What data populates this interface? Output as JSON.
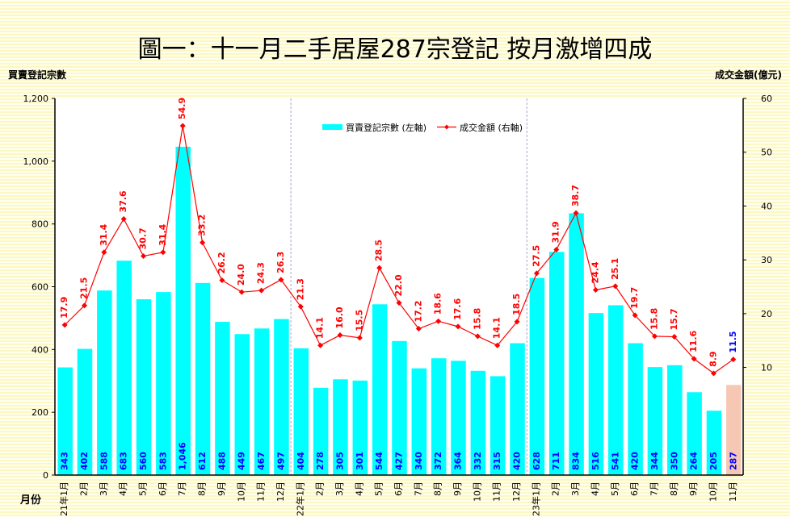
{
  "chart_data": {
    "type": "bar+line",
    "title": "圖一：十一月二手居屋287宗登記 按月激增四成",
    "ylabel_left": "買賣登記宗數",
    "ylabel_right": "成交金額(億元)",
    "xlabel": "月份",
    "categories": [
      "21年1月",
      "2月",
      "3月",
      "4月",
      "5月",
      "6月",
      "7月",
      "8月",
      "9月",
      "10月",
      "11月",
      "12月",
      "22年1月",
      "2月",
      "3月",
      "4月",
      "5月",
      "6月",
      "7月",
      "8月",
      "9月",
      "10月",
      "11月",
      "12月",
      "23年1月",
      "2月",
      "3月",
      "4月",
      "5月",
      "6月",
      "7月",
      "8月",
      "9月",
      "10月",
      "11月"
    ],
    "series": [
      {
        "name": "買賣登記宗數 (左軸)",
        "type": "bar",
        "axis": "left",
        "color": "#00ffff",
        "highlight_color": "#f6c7b3",
        "values": [
          343,
          402,
          588,
          683,
          560,
          583,
          1046,
          612,
          488,
          449,
          467,
          497,
          404,
          278,
          305,
          301,
          544,
          427,
          340,
          372,
          364,
          332,
          315,
          420,
          628,
          711,
          834,
          516,
          541,
          420,
          344,
          350,
          264,
          205,
          287
        ],
        "labels": [
          "343",
          "402",
          "588",
          "683",
          "560",
          "583",
          "1,046",
          "612",
          "488",
          "449",
          "467",
          "497",
          "404",
          "278",
          "305",
          "301",
          "544",
          "427",
          "340",
          "372",
          "364",
          "332",
          "315",
          "420",
          "628",
          "711",
          "834",
          "516",
          "541",
          "420",
          "344",
          "350",
          "264",
          "205",
          "287"
        ]
      },
      {
        "name": "成交金額 (右軸)",
        "type": "line",
        "axis": "right",
        "color": "#ff0000",
        "last_label_color": "#0000ff",
        "values": [
          17.9,
          21.5,
          31.4,
          37.6,
          30.7,
          31.4,
          54.9,
          33.2,
          26.2,
          24.0,
          24.3,
          26.3,
          21.3,
          14.1,
          16.0,
          15.5,
          28.5,
          22.0,
          17.2,
          18.6,
          17.6,
          15.8,
          14.1,
          18.5,
          27.5,
          31.9,
          38.7,
          24.4,
          25.1,
          19.7,
          15.8,
          15.7,
          11.6,
          8.9,
          11.5
        ],
        "labels": [
          "17.9",
          "21.5",
          "31.4",
          "37.6",
          "30.7",
          "31.4",
          "54.9",
          "33.2",
          "26.2",
          "24.0",
          "24.3",
          "26.3",
          "21.3",
          "14.1",
          "16.0",
          "15.5",
          "28.5",
          "22.0",
          "17.2",
          "18.6",
          "17.6",
          "15.8",
          "14.1",
          "18.5",
          "27.5",
          "31.9",
          "38.7",
          "24.4",
          "25.1",
          "19.7",
          "15.8",
          "15.7",
          "11.6",
          "8.9",
          "11.5"
        ]
      }
    ],
    "ylim_left": [
      0,
      1200
    ],
    "yticks_left": [
      "0",
      "200",
      "400",
      "600",
      "800",
      "1,000",
      "1,200"
    ],
    "yticks_left_values": [
      0,
      200,
      400,
      600,
      800,
      1000,
      1200
    ],
    "ylim_right": [
      -10,
      60
    ],
    "yticks_right": [
      "10",
      "20",
      "30",
      "40",
      "50",
      "60"
    ],
    "yticks_right_values": [
      10,
      20,
      30,
      40,
      50,
      60
    ],
    "legend_placement": "top-center",
    "grid": false,
    "year_separators_after": [
      11,
      23
    ]
  }
}
